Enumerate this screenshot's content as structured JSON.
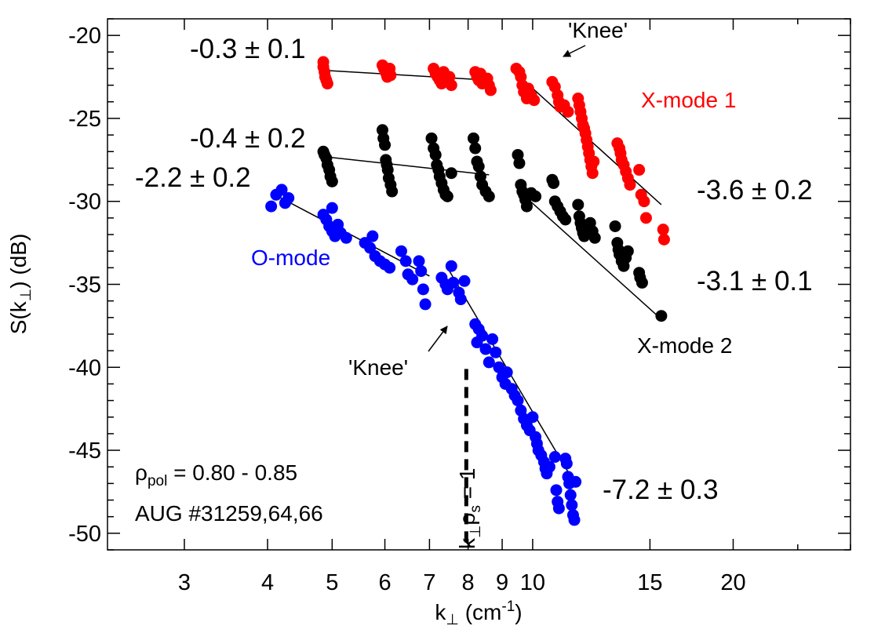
{
  "chart_data": {
    "type": "scatter",
    "x_scale": "log",
    "xlim": [
      2.3,
      30
    ],
    "ylim": [
      -51,
      -19
    ],
    "xlabel": {
      "main": "k",
      "sub": "⊥",
      "units_open": " (cm",
      "sup": "-1",
      "units_close": ")"
    },
    "ylabel": {
      "main": "S(k",
      "sub": "⊥",
      "close": ") (dB)"
    },
    "x_ticks": [
      3,
      4,
      5,
      6,
      7,
      8,
      9,
      10,
      15,
      20
    ],
    "x_tick_labels": [
      "3",
      "4",
      "5",
      "6",
      "7",
      "8",
      "9",
      "10",
      "15",
      "20"
    ],
    "y_ticks": [
      -50,
      -45,
      -40,
      -35,
      -30,
      -25,
      -20
    ],
    "y_tick_labels": [
      "-50",
      "-45",
      "-40",
      "-35",
      "-30",
      "-25",
      "-20"
    ],
    "grid": false,
    "series": [
      {
        "name": "X-mode 1",
        "color": "#ff0000",
        "points": [
          [
            4.85,
            -21.6
          ],
          [
            4.85,
            -21.9
          ],
          [
            4.87,
            -22.2
          ],
          [
            4.88,
            -22.5
          ],
          [
            4.9,
            -22.7
          ],
          [
            4.92,
            -22.9
          ],
          [
            5.95,
            -21.8
          ],
          [
            5.98,
            -22.0
          ],
          [
            6.0,
            -22.1
          ],
          [
            6.03,
            -22.3
          ],
          [
            6.05,
            -22.5
          ],
          [
            6.1,
            -22.0
          ],
          [
            6.12,
            -22.4
          ],
          [
            7.1,
            -22.0
          ],
          [
            7.15,
            -22.3
          ],
          [
            7.2,
            -22.5
          ],
          [
            7.25,
            -22.7
          ],
          [
            7.3,
            -22.9
          ],
          [
            7.35,
            -22.2
          ],
          [
            7.5,
            -22.5
          ],
          [
            7.55,
            -23.0
          ],
          [
            8.2,
            -22.2
          ],
          [
            8.25,
            -22.5
          ],
          [
            8.3,
            -22.7
          ],
          [
            8.35,
            -22.3
          ],
          [
            8.4,
            -22.9
          ],
          [
            8.55,
            -22.6
          ],
          [
            8.6,
            -23.0
          ],
          [
            8.65,
            -23.3
          ],
          [
            9.45,
            -22.0
          ],
          [
            9.55,
            -22.2
          ],
          [
            9.6,
            -22.5
          ],
          [
            9.65,
            -23.0
          ],
          [
            9.7,
            -23.4
          ],
          [
            9.8,
            -23.8
          ],
          [
            9.85,
            -23.2
          ],
          [
            9.95,
            -23.6
          ],
          [
            10.05,
            -23.9
          ],
          [
            10.7,
            -22.8
          ],
          [
            10.8,
            -23.1
          ],
          [
            10.9,
            -23.6
          ],
          [
            10.95,
            -24.0
          ],
          [
            11.0,
            -24.3
          ],
          [
            11.15,
            -24.2
          ],
          [
            11.3,
            -24.6
          ],
          [
            11.7,
            -23.8
          ],
          [
            11.75,
            -24.2
          ],
          [
            11.8,
            -24.6
          ],
          [
            11.85,
            -25.0
          ],
          [
            11.9,
            -25.4
          ],
          [
            11.95,
            -25.6
          ],
          [
            12.0,
            -25.9
          ],
          [
            12.05,
            -26.3
          ],
          [
            12.1,
            -26.7
          ],
          [
            12.15,
            -27.1
          ],
          [
            12.2,
            -27.5
          ],
          [
            12.25,
            -27.9
          ],
          [
            12.3,
            -28.3
          ],
          [
            12.35,
            -27.6
          ],
          [
            13.4,
            -26.5
          ],
          [
            13.5,
            -26.8
          ],
          [
            13.55,
            -27.1
          ],
          [
            13.6,
            -27.5
          ],
          [
            13.7,
            -27.8
          ],
          [
            13.8,
            -28.2
          ],
          [
            13.9,
            -28.6
          ],
          [
            14.0,
            -29.0
          ],
          [
            14.45,
            -28.1
          ],
          [
            14.55,
            -29.6
          ],
          [
            14.7,
            -30.0
          ],
          [
            14.8,
            -31.0
          ],
          [
            15.7,
            -31.7
          ],
          [
            15.75,
            -32.3
          ]
        ]
      },
      {
        "name": "X-mode 2",
        "color": "#000000",
        "points": [
          [
            4.85,
            -27.0
          ],
          [
            4.87,
            -27.2
          ],
          [
            4.9,
            -27.4
          ],
          [
            4.92,
            -27.8
          ],
          [
            4.95,
            -28.1
          ],
          [
            4.97,
            -28.5
          ],
          [
            5.0,
            -28.8
          ],
          [
            5.95,
            -25.7
          ],
          [
            5.97,
            -26.2
          ],
          [
            6.0,
            -26.6
          ],
          [
            6.02,
            -27.5
          ],
          [
            6.04,
            -27.8
          ],
          [
            6.06,
            -28.1
          ],
          [
            6.08,
            -28.6
          ],
          [
            6.12,
            -29.0
          ],
          [
            6.15,
            -29.4
          ],
          [
            7.05,
            -26.2
          ],
          [
            7.1,
            -26.8
          ],
          [
            7.15,
            -27.2
          ],
          [
            7.18,
            -27.8
          ],
          [
            7.22,
            -28.1
          ],
          [
            7.25,
            -28.5
          ],
          [
            7.3,
            -28.9
          ],
          [
            7.35,
            -29.3
          ],
          [
            7.4,
            -29.6
          ],
          [
            7.45,
            -29.7
          ],
          [
            7.55,
            -28.3
          ],
          [
            8.15,
            -26.2
          ],
          [
            8.2,
            -26.8
          ],
          [
            8.25,
            -27.6
          ],
          [
            8.3,
            -27.9
          ],
          [
            8.35,
            -28.5
          ],
          [
            8.4,
            -29.0
          ],
          [
            8.5,
            -29.4
          ],
          [
            8.6,
            -29.7
          ],
          [
            9.5,
            -27.2
          ],
          [
            9.55,
            -27.7
          ],
          [
            9.6,
            -29.0
          ],
          [
            9.65,
            -29.4
          ],
          [
            9.7,
            -29.6
          ],
          [
            9.75,
            -29.9
          ],
          [
            9.8,
            -30.3
          ],
          [
            9.95,
            -29.5
          ],
          [
            10.1,
            -29.7
          ],
          [
            10.7,
            -28.7
          ],
          [
            10.75,
            -28.9
          ],
          [
            10.8,
            -30.0
          ],
          [
            10.9,
            -30.3
          ],
          [
            11.0,
            -30.6
          ],
          [
            11.1,
            -30.9
          ],
          [
            11.2,
            -31.1
          ],
          [
            11.7,
            -30.2
          ],
          [
            11.75,
            -30.9
          ],
          [
            11.8,
            -31.3
          ],
          [
            11.85,
            -31.6
          ],
          [
            11.9,
            -31.9
          ],
          [
            11.95,
            -32.1
          ],
          [
            12.05,
            -31.6
          ],
          [
            12.2,
            -31.3
          ],
          [
            12.3,
            -31.8
          ],
          [
            12.4,
            -32.2
          ],
          [
            13.3,
            -31.5
          ],
          [
            13.4,
            -32.5
          ],
          [
            13.45,
            -32.9
          ],
          [
            13.5,
            -33.2
          ],
          [
            13.6,
            -33.6
          ],
          [
            13.7,
            -33.9
          ],
          [
            13.8,
            -33.4
          ],
          [
            13.9,
            -33.0
          ],
          [
            14.45,
            -34.3
          ],
          [
            14.5,
            -34.6
          ],
          [
            14.6,
            -34.9
          ],
          [
            15.6,
            -36.9
          ]
        ]
      },
      {
        "name": "O-mode",
        "color": "#0000ff",
        "points": [
          [
            4.05,
            -30.3
          ],
          [
            4.12,
            -29.6
          ],
          [
            4.2,
            -29.3
          ],
          [
            4.25,
            -30.1
          ],
          [
            4.3,
            -29.8
          ],
          [
            4.85,
            -30.8
          ],
          [
            4.9,
            -31.1
          ],
          [
            4.95,
            -31.5
          ],
          [
            5.0,
            -31.8
          ],
          [
            5.05,
            -32.1
          ],
          [
            5.1,
            -31.4
          ],
          [
            5.15,
            -31.9
          ],
          [
            5.0,
            -30.4
          ],
          [
            5.25,
            -32.2
          ],
          [
            5.6,
            -32.5
          ],
          [
            5.7,
            -32.8
          ],
          [
            5.75,
            -32.1
          ],
          [
            5.8,
            -33.3
          ],
          [
            5.9,
            -33.6
          ],
          [
            6.0,
            -33.8
          ],
          [
            6.1,
            -34.0
          ],
          [
            6.35,
            -33.0
          ],
          [
            6.45,
            -33.6
          ],
          [
            6.5,
            -34.4
          ],
          [
            6.6,
            -34.7
          ],
          [
            6.75,
            -33.6
          ],
          [
            6.8,
            -34.2
          ],
          [
            6.85,
            -35.3
          ],
          [
            6.9,
            -36.2
          ],
          [
            7.3,
            -34.6
          ],
          [
            7.4,
            -35.0
          ],
          [
            7.45,
            -35.3
          ],
          [
            7.55,
            -33.9
          ],
          [
            7.6,
            -34.9
          ],
          [
            7.75,
            -35.5
          ],
          [
            7.8,
            -35.9
          ],
          [
            7.9,
            -34.8
          ],
          [
            8.2,
            -37.4
          ],
          [
            8.3,
            -37.7
          ],
          [
            8.4,
            -38.1
          ],
          [
            8.25,
            -38.5
          ],
          [
            8.5,
            -38.9
          ],
          [
            8.7,
            -38.3
          ],
          [
            8.8,
            -39.1
          ],
          [
            8.6,
            -39.7
          ],
          [
            8.9,
            -40.0
          ],
          [
            9.0,
            -40.6
          ],
          [
            9.1,
            -41.0
          ],
          [
            9.15,
            -40.3
          ],
          [
            9.3,
            -41.3
          ],
          [
            9.4,
            -41.7
          ],
          [
            9.5,
            -42.0
          ],
          [
            9.6,
            -42.6
          ],
          [
            9.7,
            -43.1
          ],
          [
            9.8,
            -43.5
          ],
          [
            9.9,
            -43.8
          ],
          [
            10.0,
            -43.0
          ],
          [
            10.1,
            -44.2
          ],
          [
            10.15,
            -44.6
          ],
          [
            10.2,
            -45.0
          ],
          [
            10.3,
            -45.3
          ],
          [
            10.4,
            -45.7
          ],
          [
            10.45,
            -46.1
          ],
          [
            10.5,
            -46.4
          ],
          [
            10.6,
            -46.0
          ],
          [
            10.8,
            -45.4
          ],
          [
            10.85,
            -47.4
          ],
          [
            10.9,
            -48.1
          ],
          [
            10.95,
            -48.5
          ],
          [
            11.2,
            -45.5
          ],
          [
            11.25,
            -45.8
          ],
          [
            11.3,
            -46.6
          ],
          [
            11.35,
            -47.0
          ],
          [
            11.4,
            -47.7
          ],
          [
            11.45,
            -48.3
          ],
          [
            11.5,
            -48.9
          ],
          [
            11.55,
            -49.2
          ],
          [
            11.6,
            -46.9
          ]
        ]
      }
    ],
    "fit_lines": [
      {
        "from": [
          4.85,
          -22.1
        ],
        "to": [
          8.6,
          -22.7
        ]
      },
      {
        "from": [
          9.45,
          -22.3
        ],
        "to": [
          15.6,
          -30.2
        ]
      },
      {
        "from": [
          4.85,
          -27.3
        ],
        "to": [
          8.6,
          -28.4
        ]
      },
      {
        "from": [
          9.55,
          -29.4
        ],
        "to": [
          15.6,
          -37.1
        ]
      },
      {
        "from": [
          4.1,
          -29.6
        ],
        "to": [
          7.0,
          -34.5
        ]
      },
      {
        "from": [
          7.45,
          -34.0
        ],
        "to": [
          11.3,
          -46.3
        ]
      }
    ],
    "vline": {
      "x": 7.95,
      "y_from": -40.1,
      "y_to": -51
    },
    "annotations": {
      "slope_x1_flat": "-0.3 ± 0.1",
      "slope_x2_flat": "-0.4 ± 0.2",
      "slope_o_flat": "-2.2 ± 0.2",
      "slope_x1_steep": "-3.6 ± 0.2",
      "slope_x2_steep": "-3.1 ± 0.1",
      "slope_o_steep": "-7.2 ± 0.3",
      "knee_top": "'Knee'",
      "knee_bottom": "'Knee'",
      "label_x1": "X-mode 1",
      "label_x2": "X-mode 2",
      "label_o": "O-mode",
      "rho_main": "ρ",
      "rho_sub": "pol",
      "rho_value": " = 0.80 - 0.85",
      "shot": "AUG #31259,64,66",
      "krho_k": "k",
      "krho_sub": "⊥",
      "krho_rho": "ρ",
      "krho_sub2": "s",
      "krho_rest": " = 1"
    }
  }
}
